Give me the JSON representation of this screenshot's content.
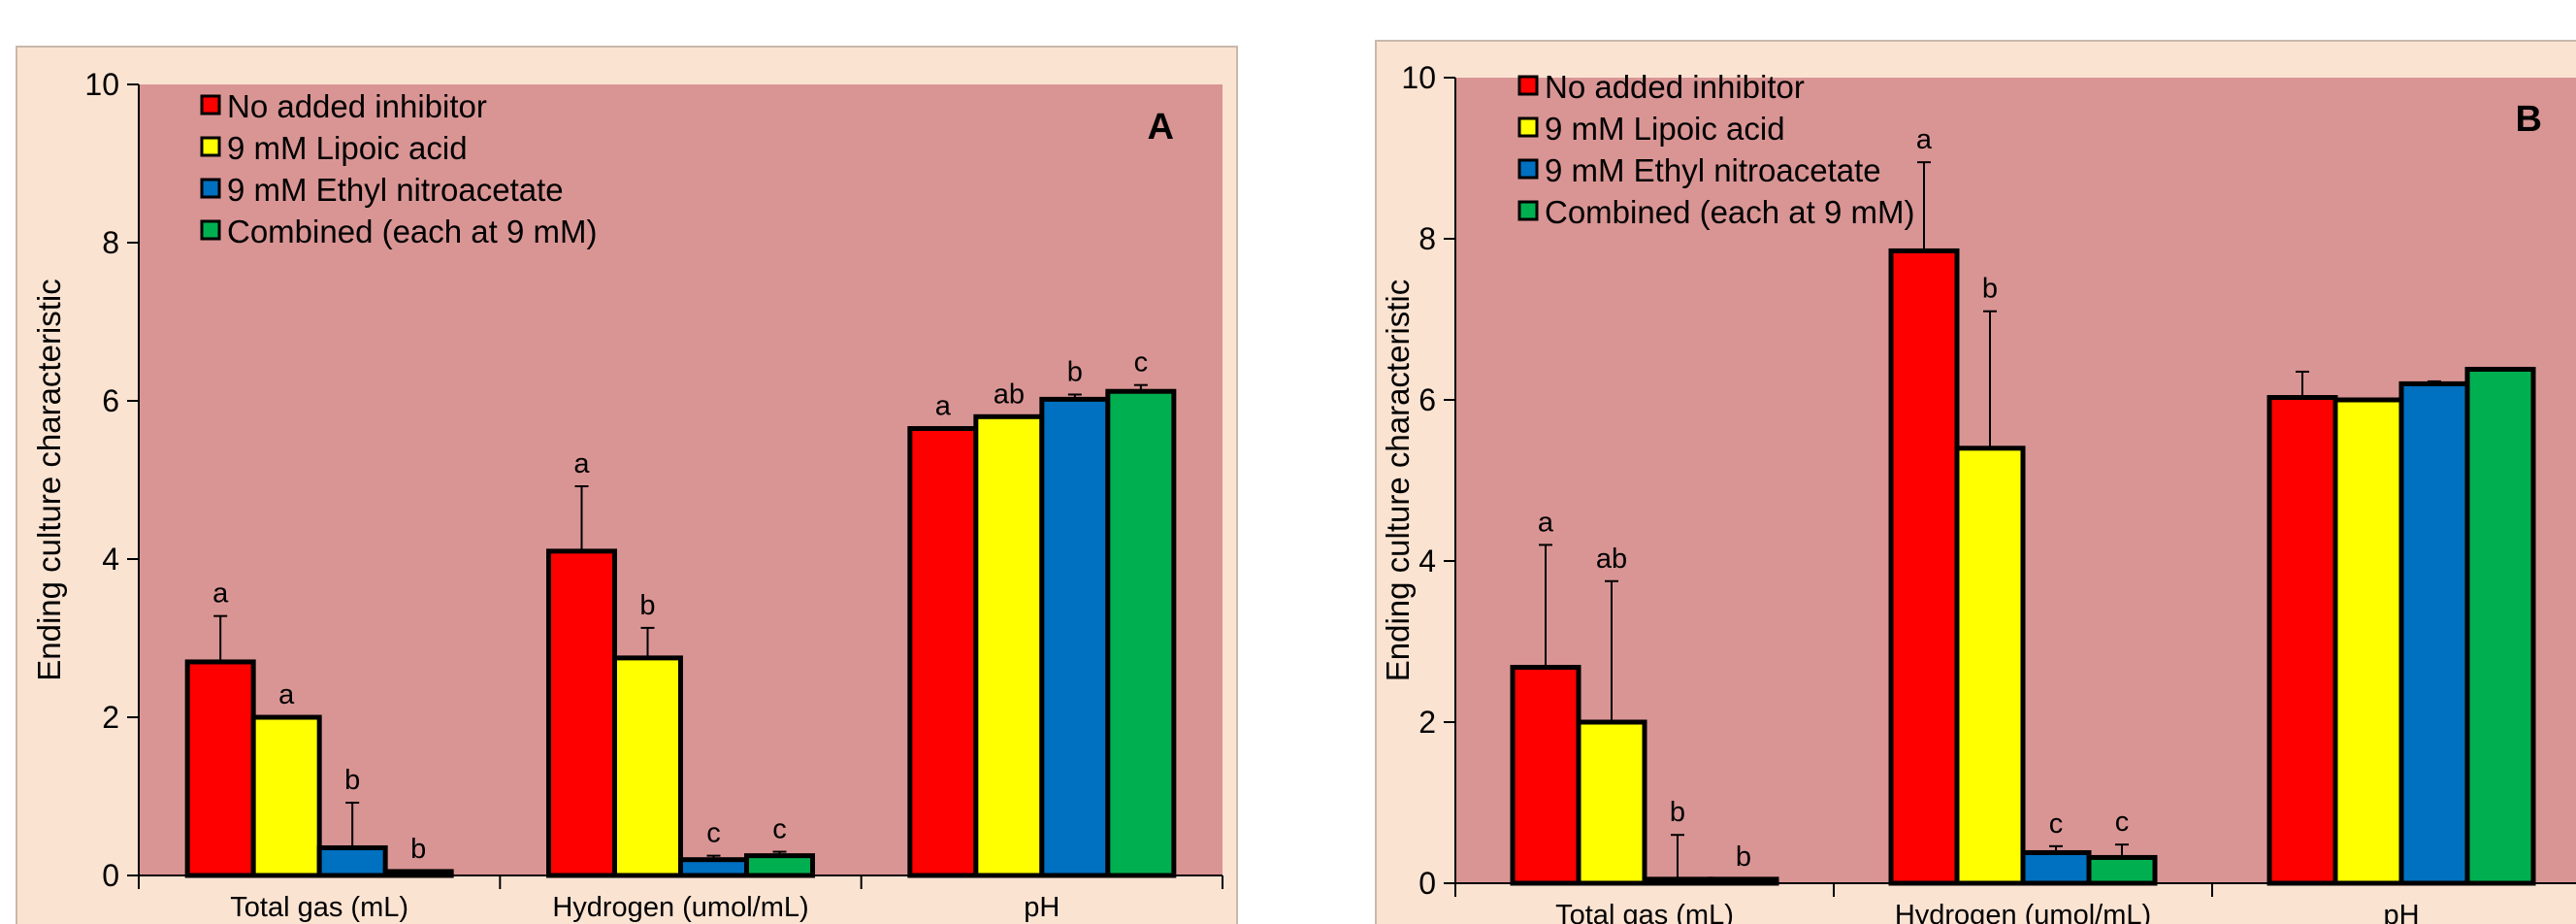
{
  "chart_data": [
    {
      "type": "bar",
      "panel_label": "A",
      "ylabel": "Ending culture characteristic",
      "ylim": [
        0,
        10
      ],
      "yticks": [
        "0",
        "2",
        "4",
        "6",
        "8",
        "10"
      ],
      "categories": [
        "Total gas (mL)",
        "Hydrogen (umol/mL)",
        "pH"
      ],
      "legend_position": "top-left",
      "series": [
        {
          "name": "No added inhibitor",
          "color": "#ff0000",
          "values": [
            2.7,
            4.1,
            5.65
          ],
          "errors": [
            0.58,
            0.82,
            0
          ],
          "letters": [
            "a",
            "a",
            "a"
          ]
        },
        {
          "name": "9 mM Lipoic acid",
          "color": "#ffff00",
          "values": [
            2.0,
            2.75,
            5.8
          ],
          "errors": [
            0,
            0.38,
            0
          ],
          "letters": [
            "a",
            "b",
            "ab"
          ]
        },
        {
          "name": "9 mM Ethyl nitroacetate",
          "color": "#0070c0",
          "values": [
            0.35,
            0.2,
            6.02
          ],
          "errors": [
            0.57,
            0.05,
            0.06
          ],
          "letters": [
            "b",
            "c",
            "b"
          ]
        },
        {
          "name": "Combined (each at 9 mM)",
          "color": "#00b050",
          "values": [
            0.05,
            0.25,
            6.12
          ],
          "errors": [
            0,
            0.05,
            0.08
          ],
          "letters": [
            "b",
            "c",
            "c"
          ]
        }
      ]
    },
    {
      "type": "bar",
      "panel_label": "B",
      "ylabel": "Ending culture characteristic",
      "ylim": [
        0,
        10
      ],
      "yticks": [
        "0",
        "2",
        "4",
        "6",
        "8",
        "10"
      ],
      "categories": [
        "Total gas (mL)",
        "Hydrogen (umol/mL)",
        "pH"
      ],
      "legend_position": "top-left",
      "series": [
        {
          "name": "No added inhibitor",
          "color": "#ff0000",
          "values": [
            2.68,
            7.85,
            6.03
          ],
          "errors": [
            1.52,
            1.1,
            0.32
          ],
          "letters": [
            "a",
            "a",
            ""
          ]
        },
        {
          "name": "9 mM Lipoic acid",
          "color": "#ffff00",
          "values": [
            2.0,
            5.4,
            6.0
          ],
          "errors": [
            1.75,
            1.7,
            0
          ],
          "letters": [
            "ab",
            "b",
            ""
          ]
        },
        {
          "name": "9 mM Ethyl nitroacetate",
          "color": "#0070c0",
          "values": [
            0.05,
            0.38,
            6.2
          ],
          "errors": [
            0.55,
            0.08,
            0.03
          ],
          "letters": [
            "b",
            "c",
            ""
          ]
        },
        {
          "name": "Combined (each at 9 mM)",
          "color": "#00b050",
          "values": [
            0.05,
            0.32,
            6.38
          ],
          "errors": [
            0,
            0.16,
            0
          ],
          "letters": [
            "b",
            "c",
            ""
          ]
        }
      ]
    }
  ]
}
